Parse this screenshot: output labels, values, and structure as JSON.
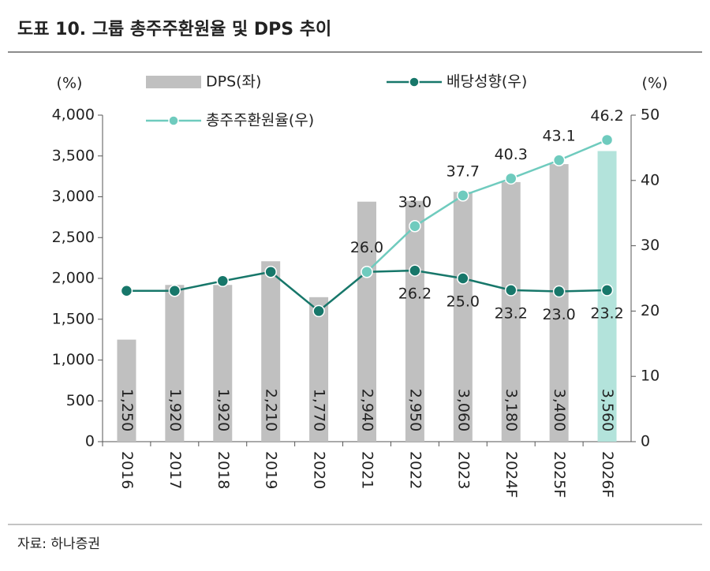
{
  "title": "도표 10. 그룹 총주주환원율 및 DPS 추이",
  "source": "자료: 하나증권",
  "chart_data": {
    "type": "bar",
    "categories": [
      "2016",
      "2017",
      "2018",
      "2019",
      "2020",
      "2021",
      "2022",
      "2023",
      "2024F",
      "2025F",
      "2026F"
    ],
    "ylabel": "(%)",
    "y2label": "(%)",
    "ylim": [
      0,
      4000
    ],
    "yticks": [
      0,
      500,
      {
        "value": 1000,
        "label": "1,000"
      },
      {
        "value": 1500,
        "label": "1,500"
      },
      {
        "value": 2000,
        "label": "2,000"
      },
      {
        "value": 2500,
        "label": "2,500"
      },
      {
        "value": 3000,
        "label": "3,000"
      },
      {
        "value": 3500,
        "label": "3,500"
      },
      {
        "value": 4000,
        "label": "4,000"
      }
    ],
    "y2lim": [
      0,
      50
    ],
    "y2ticks": [
      0,
      10,
      20,
      30,
      40,
      50
    ],
    "series": [
      {
        "name": "DPS(좌)",
        "type": "bar",
        "color": "#c0c0c0",
        "highlight_color": "#b3e3db",
        "values": [
          1250,
          1920,
          1920,
          2210,
          1770,
          2940,
          2950,
          3060,
          3180,
          3400,
          3560
        ],
        "value_labels": [
          "1,250",
          "1,920",
          "1,920",
          "2,210",
          "1,770",
          "2,940",
          "2,950",
          "3,060",
          "3,180",
          "3,400",
          "3,560"
        ]
      },
      {
        "name": "배당성향(우)",
        "type": "line",
        "axis": "y2",
        "color": "#17776a",
        "values": [
          23.1,
          23.1,
          24.6,
          26.0,
          20.0,
          26.0,
          26.2,
          25.0,
          23.2,
          23.0,
          23.2
        ],
        "value_labels": [
          null,
          null,
          null,
          null,
          null,
          null,
          "26.2",
          "25.0",
          "23.2",
          "23.0",
          "23.2"
        ]
      },
      {
        "name": "총주주환원율(우)",
        "type": "line",
        "axis": "y2",
        "color": "#6fcbbe",
        "values": [
          null,
          null,
          null,
          null,
          null,
          26.0,
          33.0,
          37.7,
          40.3,
          43.1,
          46.2
        ],
        "value_labels": [
          null,
          null,
          null,
          null,
          null,
          "26.0",
          "33.0",
          "37.7",
          "40.3",
          "43.1",
          "46.2"
        ]
      }
    ]
  }
}
